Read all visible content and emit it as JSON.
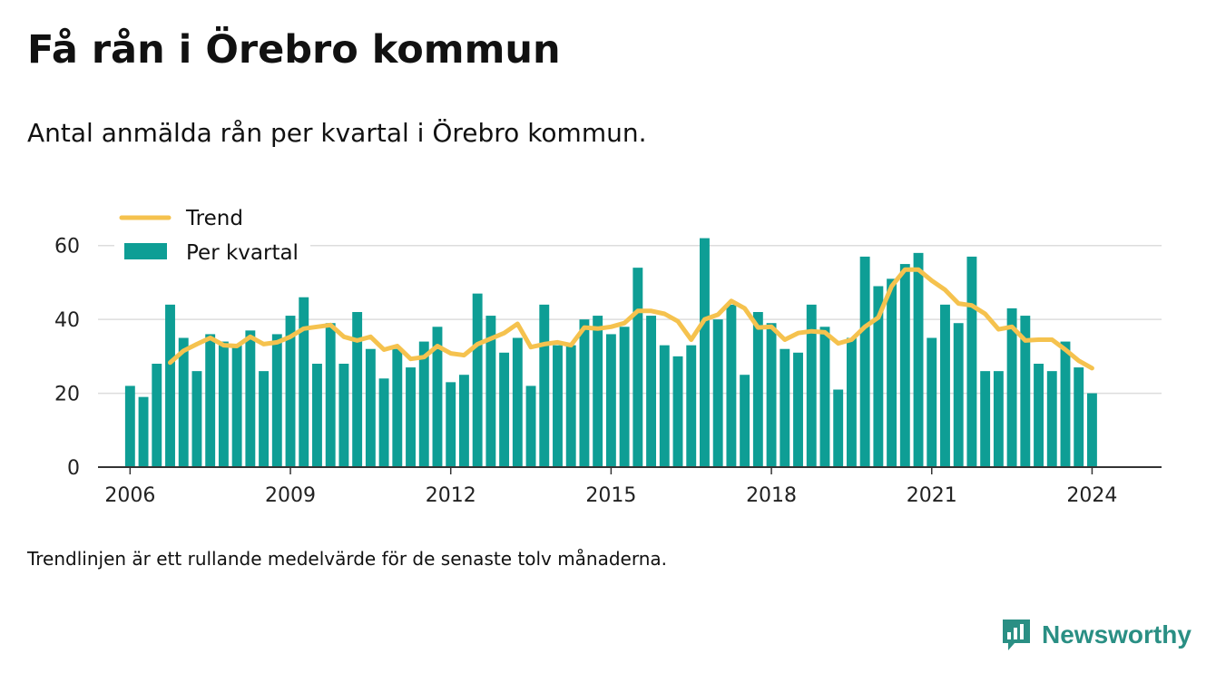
{
  "title": "Få rån i Örebro kommun",
  "subtitle": "Antal anmälda rån per kvartal i Örebro kommun.",
  "footnote": "Trendlinjen är ett rullande medelvärde för de senaste tolv månaderna.",
  "brand": {
    "name": "Newsworthy",
    "icon": "newsworthy-logo-icon",
    "color": "#2a8f84"
  },
  "colors": {
    "bars": "#0e9e95",
    "trend": "#f5c24e",
    "grid": "#dddddd",
    "axis": "#333333"
  },
  "chart_data": {
    "type": "bar",
    "x_unit": "quarter",
    "start": "2006 Q1",
    "xlim": [
      2005.4,
      2025.3
    ],
    "ylim": [
      0,
      70
    ],
    "x_ticks": [
      2006,
      2009,
      2012,
      2015,
      2018,
      2021,
      2024
    ],
    "y_ticks": [
      0,
      20,
      40,
      60
    ],
    "grid": "horizontal",
    "legend_position": "top-left",
    "series": [
      {
        "name": "Per kvartal",
        "type": "bar",
        "values": [
          22,
          19,
          28,
          44,
          35,
          26,
          36,
          34,
          33,
          37,
          26,
          36,
          41,
          46,
          28,
          39,
          28,
          42,
          32,
          24,
          32,
          27,
          34,
          38,
          23,
          25,
          47,
          41,
          31,
          35,
          22,
          44,
          33,
          33,
          40,
          41,
          36,
          38,
          54,
          41,
          33,
          30,
          33,
          62,
          40,
          44,
          25,
          42,
          39,
          32,
          31,
          44,
          38,
          21,
          35,
          57,
          49,
          51,
          55,
          58,
          35,
          44,
          39,
          57,
          26,
          26,
          43,
          41,
          28,
          26,
          34,
          27,
          20
        ]
      },
      {
        "name": "Trend",
        "type": "line",
        "start_index": 3,
        "values": [
          28.3,
          31.5,
          33.3,
          35.0,
          33.0,
          32.8,
          35.3,
          33.3,
          33.8,
          35.3,
          37.5,
          38.0,
          38.5,
          35.3,
          34.3,
          35.3,
          31.8,
          32.8,
          29.3,
          29.8,
          32.8,
          30.8,
          30.3,
          33.3,
          34.8,
          36.3,
          38.8,
          32.5,
          33.3,
          33.8,
          33.0,
          37.8,
          37.5,
          38.0,
          39.0,
          42.3,
          42.3,
          41.5,
          39.5,
          34.5,
          40.0,
          41.3,
          45.0,
          43.0,
          37.8,
          38.0,
          34.5,
          36.3,
          36.8,
          36.5,
          33.5,
          34.5,
          38.0,
          40.5,
          49.0,
          53.5,
          53.5,
          50.5,
          48.0,
          44.3,
          43.8,
          41.5,
          37.3,
          38.0,
          34.3,
          34.5,
          34.5,
          31.8,
          28.8,
          26.8
        ]
      }
    ]
  }
}
